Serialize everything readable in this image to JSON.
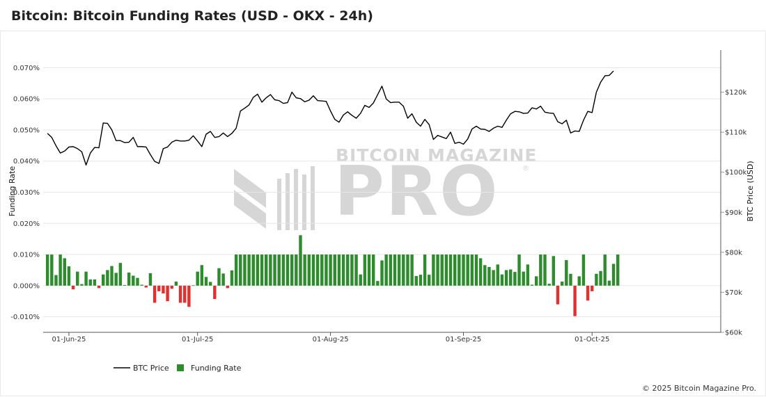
{
  "header": {
    "title": "Bitcoin: Bitcoin Funding Rates (USD - OKX - 24h)"
  },
  "watermark": {
    "brand": "BITCOIN MAGAZINE",
    "product": "PRO",
    "mark": "®"
  },
  "footer": {
    "copyright": "© 2025 Bitcoin Magazine Pro."
  },
  "colors": {
    "price_line": "#000000",
    "funding_positive": "#2e8b2e",
    "funding_negative": "#e03131",
    "grid": "#e6e6e6",
    "watermark": "#d6d6d6"
  },
  "chart_data": {
    "type": "bar+line",
    "title": "Bitcoin: Bitcoin Funding Rates (USD - OKX - 24h)",
    "x_range": [
      "2025-05-26",
      "2025-10-31"
    ],
    "x_ticks": [
      "01-Jun-25",
      "01-Jul-25",
      "01-Aug-25",
      "01-Sep-25",
      "01-Oct-25"
    ],
    "x_tick_dates": [
      "2025-06-01",
      "2025-07-01",
      "2025-08-01",
      "2025-09-01",
      "2025-10-01"
    ],
    "left_axis": {
      "label": "Funding Rate",
      "range": [
        -0.015,
        0.075
      ],
      "ticks": [
        "-0.010%",
        "0.000%",
        "0.010%",
        "0.020%",
        "0.030%",
        "0.040%",
        "0.050%",
        "0.060%",
        "0.070%"
      ],
      "tick_values": [
        -0.01,
        0.0,
        0.01,
        0.02,
        0.03,
        0.04,
        0.05,
        0.06,
        0.07
      ]
    },
    "right_axis": {
      "label": "BTC Price (USD)",
      "range": [
        60000,
        130000
      ],
      "ticks": [
        "$60k",
        "$70k",
        "$80k",
        "$90k",
        "$100k",
        "$110k",
        "$120k"
      ],
      "tick_values": [
        60000,
        70000,
        80000,
        90000,
        100000,
        110000,
        120000
      ]
    },
    "grid": true,
    "legend_position": "bottom-left",
    "series": [
      {
        "name": "BTC Price",
        "type": "line",
        "axis": "right",
        "start_date": "2025-05-27",
        "values": [
          109700,
          108700,
          106600,
          104800,
          105300,
          106300,
          106400,
          105900,
          105100,
          101800,
          104800,
          106200,
          106100,
          112300,
          112200,
          110600,
          107900,
          107900,
          107400,
          107500,
          108700,
          106400,
          106400,
          106300,
          104400,
          102700,
          102200,
          105900,
          106300,
          107500,
          108000,
          107800,
          107800,
          108000,
          109100,
          107800,
          106400,
          109500,
          110200,
          108700,
          108900,
          109800,
          108900,
          109700,
          111000,
          115300,
          116000,
          116800,
          118700,
          119500,
          117500,
          118600,
          119400,
          118100,
          117900,
          117200,
          117400,
          120000,
          118600,
          118400,
          117600,
          118000,
          119100,
          117900,
          117800,
          117700,
          115300,
          113200,
          112500,
          114300,
          115100,
          114200,
          113500,
          114700,
          116700,
          116200,
          117300,
          119400,
          121500,
          118300,
          117400,
          117500,
          117500,
          116500,
          113500,
          114600,
          112500,
          111500,
          113200,
          111900,
          108200,
          109200,
          108800,
          108400,
          110000,
          107200,
          107500,
          107000,
          108300,
          110800,
          111500,
          110800,
          110700,
          110200,
          111000,
          111500,
          111200,
          113000,
          114600,
          115200,
          115100,
          114700,
          114800,
          116100,
          115800,
          116500,
          115000,
          114800,
          114700,
          112600,
          112100,
          113000,
          109800,
          110300,
          110200,
          113000,
          115200,
          114900,
          120000,
          122500,
          124100,
          124200,
          125300
        ]
      },
      {
        "name": "Funding Rate",
        "type": "bar",
        "axis": "left",
        "start_date": "2025-05-27",
        "values": [
          0.01,
          0.01,
          0.0034,
          0.01,
          0.0088,
          0.0062,
          -0.0012,
          0.0045,
          0.0005,
          0.0045,
          0.002,
          0.002,
          -0.0008,
          0.0036,
          0.005,
          0.0063,
          0.0041,
          0.0073,
          0.0002,
          0.0042,
          0.0032,
          0.0025,
          0.0003,
          -0.0006,
          0.004,
          -0.0055,
          -0.0018,
          -0.0025,
          -0.005,
          -0.001,
          0.0013,
          -0.0055,
          -0.0055,
          -0.0068,
          0.0001,
          0.0045,
          0.0066,
          0.0028,
          0.0012,
          -0.0043,
          0.0056,
          0.0039,
          -0.0008,
          0.0049,
          0.01,
          0.01,
          0.01,
          0.01,
          0.01,
          0.01,
          0.01,
          0.01,
          0.01,
          0.01,
          0.01,
          0.01,
          0.01,
          0.01,
          0.01,
          0.0162,
          0.01,
          0.01,
          0.01,
          0.01,
          0.01,
          0.01,
          0.01,
          0.01,
          0.01,
          0.01,
          0.01,
          0.01,
          0.01,
          0.0036,
          0.01,
          0.01,
          0.01,
          0.0015,
          0.0081,
          0.01,
          0.01,
          0.01,
          0.01,
          0.01,
          0.01,
          0.01,
          0.0031,
          0.0035,
          0.01,
          0.0035,
          0.01,
          0.01,
          0.01,
          0.01,
          0.01,
          0.01,
          0.01,
          0.01,
          0.01,
          0.01,
          0.01,
          0.0088,
          0.0066,
          0.006,
          0.005,
          0.0068,
          0.0036,
          0.005,
          0.0052,
          0.0044,
          0.01,
          0.0045,
          0.0068,
          0.0003,
          0.003,
          0.01,
          0.01,
          0.0006,
          0.0095,
          -0.006,
          0.0013,
          0.0082,
          0.0038,
          -0.0098,
          0.003,
          0.01,
          -0.0048,
          -0.0018,
          0.0038,
          0.0047,
          0.01,
          0.0016,
          0.007,
          0.01
        ]
      }
    ]
  }
}
